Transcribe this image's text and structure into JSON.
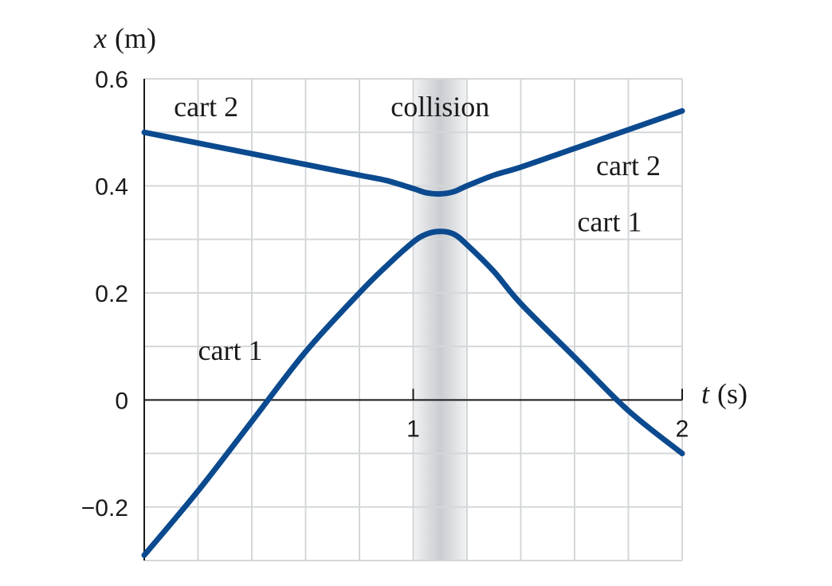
{
  "chart_data": {
    "type": "line",
    "x_axis": {
      "symbol": "t",
      "unit": "(s)",
      "xlim": [
        0,
        2
      ],
      "ticks": [
        1,
        2
      ],
      "tick_labels": [
        "1",
        "2"
      ]
    },
    "y_axis": {
      "symbol": "x",
      "unit": "(m)",
      "ylim": [
        -0.3,
        0.6
      ],
      "ticks": [
        -0.2,
        0,
        0.2,
        0.4,
        0.6
      ],
      "tick_labels": [
        "−0.2",
        "0",
        "0.2",
        "0.4",
        "0.6"
      ]
    },
    "grid": true,
    "grid_step": {
      "x": 0.2,
      "y": 0.1
    },
    "highlight_band": {
      "label": "collision",
      "x_range": [
        1.0,
        1.2
      ]
    },
    "series": [
      {
        "name": "cart 1",
        "color": "#0b4a8f",
        "x": [
          0,
          0.2,
          0.4,
          0.6,
          0.8,
          0.9,
          1.0,
          1.05,
          1.1,
          1.15,
          1.2,
          1.3,
          1.4,
          1.6,
          1.8,
          2.0
        ],
        "y": [
          -0.29,
          -0.17,
          -0.04,
          0.09,
          0.2,
          0.25,
          0.295,
          0.31,
          0.315,
          0.31,
          0.29,
          0.24,
          0.18,
          0.08,
          -0.02,
          -0.1
        ]
      },
      {
        "name": "cart 2",
        "color": "#0b4a8f",
        "x": [
          0,
          0.2,
          0.4,
          0.6,
          0.8,
          0.9,
          1.0,
          1.05,
          1.1,
          1.15,
          1.2,
          1.3,
          1.4,
          1.6,
          1.8,
          2.0
        ],
        "y": [
          0.5,
          0.48,
          0.46,
          0.44,
          0.42,
          0.41,
          0.395,
          0.387,
          0.385,
          0.389,
          0.4,
          0.42,
          0.435,
          0.47,
          0.505,
          0.54
        ]
      }
    ],
    "annotations": [
      {
        "id": "collision",
        "text": "collision",
        "x": 1.1,
        "y": 0.53
      },
      {
        "id": "cart2-left",
        "text": "cart 2",
        "x": 0.23,
        "y": 0.53
      },
      {
        "id": "cart2-right",
        "text": "cart 2",
        "x": 1.8,
        "y": 0.42
      },
      {
        "id": "cart1-left",
        "text": "cart 1",
        "x": 0.32,
        "y": 0.075
      },
      {
        "id": "cart1-right",
        "text": "cart 1",
        "x": 1.73,
        "y": 0.315
      }
    ]
  }
}
